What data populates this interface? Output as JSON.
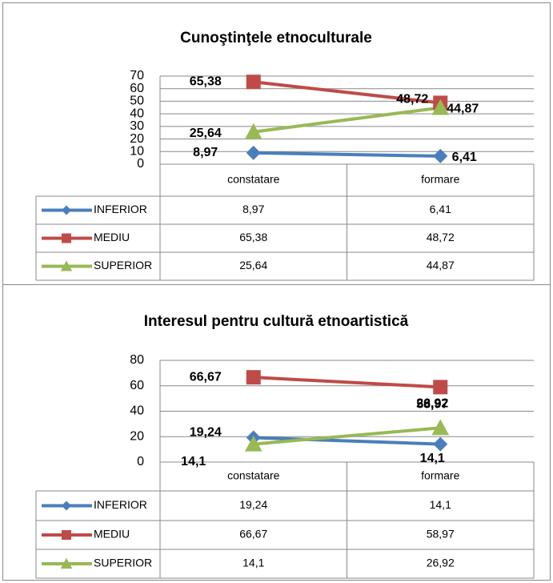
{
  "chart_data": [
    {
      "type": "line",
      "title": "Cunoştinţele etnoculturale",
      "categories": [
        "constatare",
        "formare"
      ],
      "series": [
        {
          "name": "INFERIOR",
          "color": "#4a7ebb",
          "marker": "diamond",
          "values": [
            8.97,
            6.41
          ],
          "value_labels": [
            "8,97",
            "6,41"
          ]
        },
        {
          "name": "MEDIU",
          "color": "#be4b48",
          "marker": "square",
          "values": [
            65.38,
            48.72
          ],
          "value_labels": [
            "65,38",
            "48,72"
          ]
        },
        {
          "name": "SUPERIOR",
          "color": "#98b954",
          "marker": "triangle",
          "values": [
            25.64,
            44.87
          ],
          "value_labels": [
            "25,64",
            "44,87"
          ]
        }
      ],
      "ylim": [
        0,
        70
      ],
      "yticks": [
        0,
        10,
        20,
        30,
        40,
        50,
        60,
        70
      ],
      "grid": true
    },
    {
      "type": "line",
      "title": "Interesul pentru cultură etnoartistică",
      "categories": [
        "constatare",
        "formare"
      ],
      "series": [
        {
          "name": "INFERIOR",
          "color": "#4a7ebb",
          "marker": "diamond",
          "values": [
            19.24,
            14.1
          ],
          "value_labels": [
            "19,24",
            "14,1"
          ]
        },
        {
          "name": "MEDIU",
          "color": "#be4b48",
          "marker": "square",
          "values": [
            66.67,
            58.97
          ],
          "value_labels": [
            "66,67",
            "58,97"
          ]
        },
        {
          "name": "SUPERIOR",
          "color": "#98b954",
          "marker": "triangle",
          "values": [
            14.1,
            26.92
          ],
          "value_labels": [
            "14,1",
            "26,92"
          ]
        }
      ],
      "ylim": [
        0,
        80
      ],
      "yticks": [
        0,
        20,
        40,
        60,
        80
      ],
      "grid": true
    }
  ]
}
